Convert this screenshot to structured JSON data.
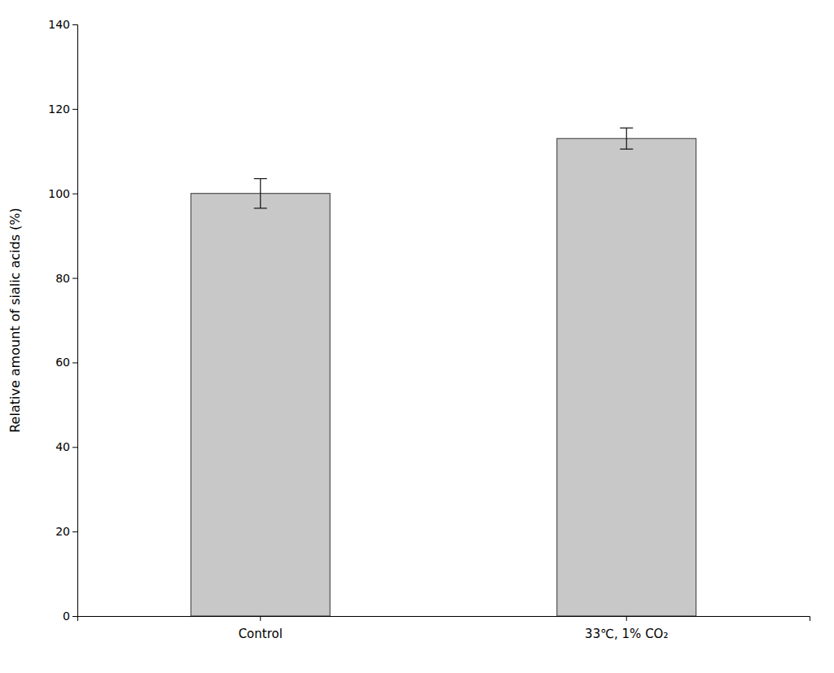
{
  "chart_data": {
    "type": "bar",
    "ylabel": "Relative amount of sialic acids (%)",
    "categories": [
      "Control",
      "33℃, 1% CO₂"
    ],
    "values": [
      100.0,
      113.0
    ],
    "errors": [
      3.5,
      2.5
    ],
    "color": "#c8c8c8",
    "ylim": [
      0,
      140
    ],
    "yticks": [
      0,
      20,
      40,
      60,
      80,
      100,
      120,
      140
    ],
    "grid": false
  }
}
